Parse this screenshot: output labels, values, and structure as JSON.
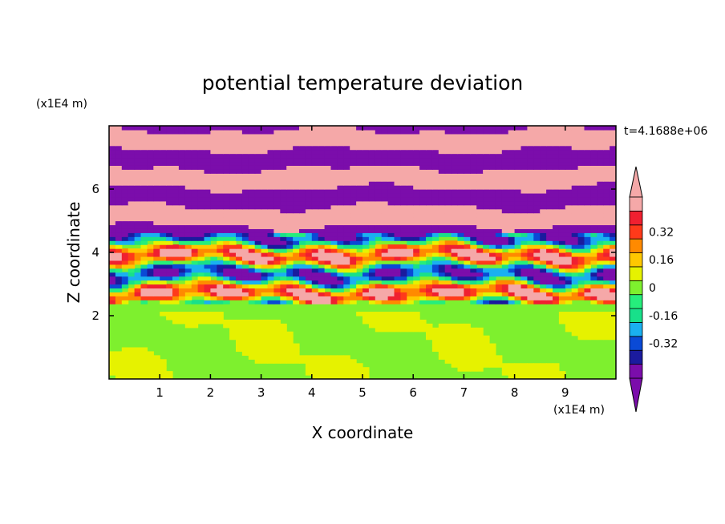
{
  "chart_data": {
    "type": "heatmap",
    "title": "potential temperature deviation",
    "xlabel": "X coordinate",
    "ylabel": "Z coordinate",
    "x_unit": "(x1E4 m)",
    "y_unit": "(x1E4 m)",
    "time_label": "t=4.1688e+06",
    "xlim": [
      0,
      10
    ],
    "ylim": [
      0,
      8
    ],
    "x_ticks": [
      1,
      2,
      3,
      4,
      5,
      6,
      7,
      8,
      9
    ],
    "y_ticks": [
      2,
      4,
      6
    ],
    "colorbar": {
      "levels": [
        -0.48,
        -0.4,
        -0.32,
        -0.24,
        -0.16,
        -0.08,
        0,
        0.08,
        0.16,
        0.24,
        0.32,
        0.4,
        0.48
      ],
      "labels": [
        "0.32",
        "0.16",
        "0",
        "-0.16",
        "-0.32"
      ],
      "label_values": [
        0.32,
        0.16,
        0,
        -0.16,
        -0.32
      ],
      "colors": [
        "#7b0dab",
        "#1b1b9e",
        "#0a4ad6",
        "#1ab0f0",
        "#18e08a",
        "#26ee7c",
        "#7ef02e",
        "#e6f200",
        "#ffc800",
        "#ff8a00",
        "#ff3a1a",
        "#f02030",
        "#f5a8a8"
      ],
      "extend_low_color": "#7b0dab",
      "extend_high_color": "#f5a8a8"
    },
    "regions": [
      {
        "z_range": [
          0,
          2.1
        ],
        "description": "green mixed layer",
        "dominant_values": [
          0,
          0.08
        ]
      },
      {
        "z_range": [
          2.1,
          2.4
        ],
        "description": "near-zero transition",
        "dominant_values": [
          0
        ]
      },
      {
        "z_range": [
          2.4,
          4.6
        ],
        "description": "turbulent banded layer",
        "dominant_values": [
          -0.48,
          0.48,
          0.16,
          -0.16
        ]
      },
      {
        "z_range": [
          4.6,
          8.0
        ],
        "description": "alternating bands",
        "dominant_values": [
          -0.48,
          0.48
        ]
      }
    ]
  }
}
